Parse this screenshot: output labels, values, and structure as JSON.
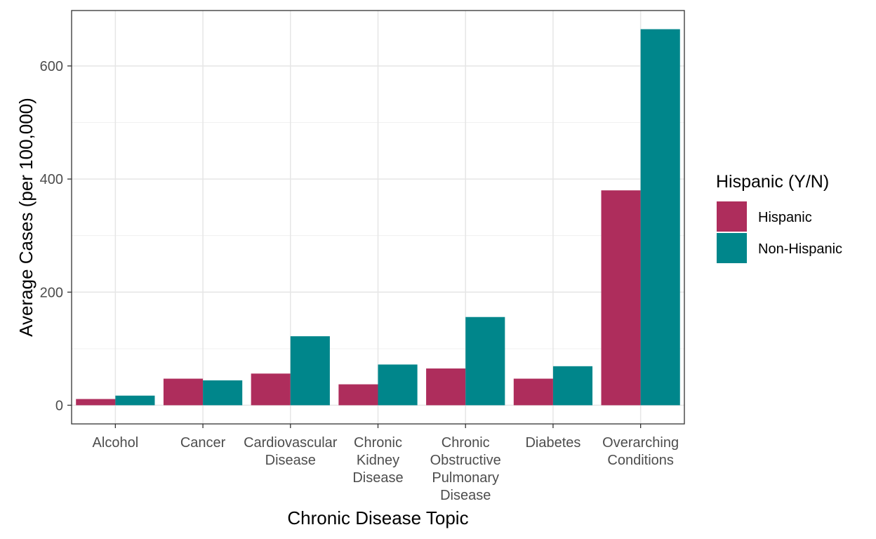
{
  "chart_data": {
    "type": "bar",
    "categories": [
      [
        "Alcohol"
      ],
      [
        "Cancer"
      ],
      [
        "Cardiovascular",
        "Disease"
      ],
      [
        "Chronic",
        "Kidney",
        "Disease"
      ],
      [
        "Chronic",
        "Obstructive",
        "Pulmonary",
        "Disease"
      ],
      [
        "Diabetes"
      ],
      [
        "Overarching",
        "Conditions"
      ]
    ],
    "series": [
      {
        "name": "Hispanic",
        "color": "#AE2D5C",
        "values": [
          11,
          47,
          56,
          37,
          65,
          47,
          380
        ]
      },
      {
        "name": "Non-Hispanic",
        "color": "#00868B",
        "values": [
          17,
          44,
          122,
          72,
          156,
          69,
          665
        ]
      }
    ],
    "xlabel": "Chronic Disease Topic",
    "ylabel": "Average Cases (per 100,000)",
    "ylim": [
      -33,
      698
    ],
    "yticks": [
      0,
      200,
      400,
      600
    ],
    "yticks_minor": [
      100,
      300,
      500
    ],
    "grid": true,
    "legend": {
      "title": "Hispanic (Y/N)",
      "position": "right"
    }
  }
}
